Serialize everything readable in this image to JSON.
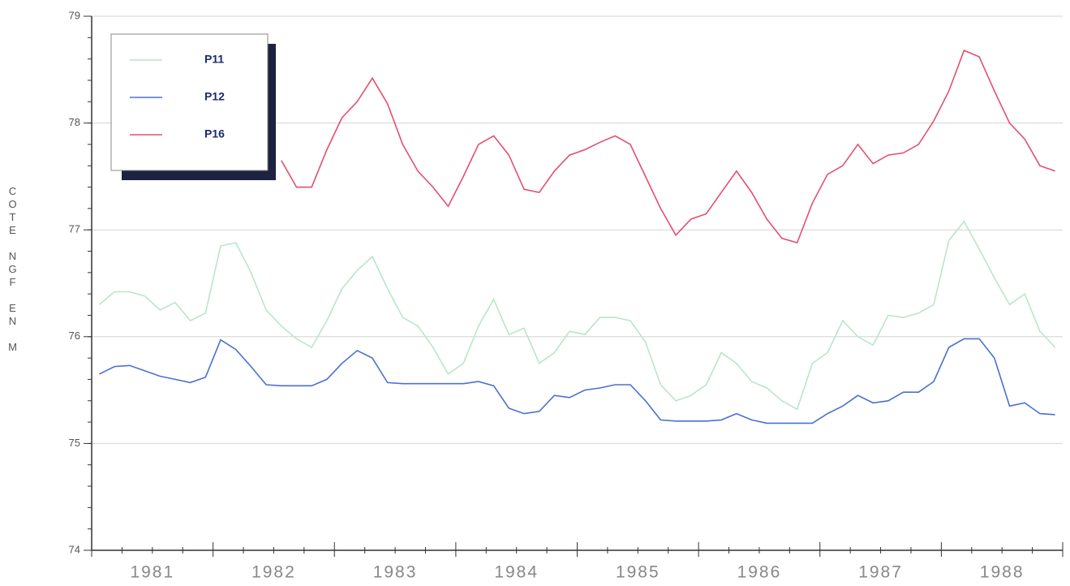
{
  "chart_data": {
    "type": "line",
    "y_label": "COTE NGF EN M",
    "categories": [
      null,
      null,
      null,
      null,
      "1981",
      null,
      null,
      null,
      null,
      null,
      null,
      null,
      "1982",
      null,
      null,
      null,
      null,
      null,
      null,
      null,
      "1983",
      null,
      null,
      null,
      null,
      null,
      null,
      null,
      "1984",
      null,
      null,
      null,
      null,
      null,
      null,
      null,
      "1985",
      null,
      null,
      null,
      null,
      null,
      null,
      null,
      "1986",
      null,
      null,
      null,
      null,
      null,
      null,
      null,
      "1987",
      null,
      null,
      null,
      null,
      null,
      null,
      null,
      "1988",
      null,
      null,
      null
    ],
    "series": [
      {
        "name": "P11",
        "color": "#b9e6c9",
        "values": [
          76.3,
          76.42,
          76.42,
          76.38,
          76.25,
          76.32,
          76.15,
          76.22,
          76.85,
          76.88,
          76.6,
          76.25,
          76.1,
          75.98,
          75.9,
          76.15,
          76.45,
          76.62,
          76.75,
          76.45,
          76.18,
          76.1,
          75.9,
          75.65,
          75.75,
          76.1,
          76.35,
          76.02,
          76.08,
          75.75,
          75.85,
          76.05,
          76.02,
          76.18,
          76.18,
          76.15,
          75.95,
          75.55,
          75.4,
          75.45,
          75.55,
          75.85,
          75.75,
          75.58,
          75.52,
          75.4,
          75.32,
          75.75,
          75.85,
          76.15,
          76.0,
          75.92,
          76.2,
          76.18,
          76.22,
          76.3,
          76.9,
          77.08,
          76.82,
          76.55,
          76.3,
          76.4,
          76.05,
          75.9
        ]
      },
      {
        "name": "P12",
        "color": "#4a70d2",
        "values": [
          75.65,
          75.72,
          75.73,
          75.68,
          75.63,
          75.6,
          75.57,
          75.62,
          75.97,
          75.88,
          75.72,
          75.55,
          75.54,
          75.54,
          75.54,
          75.6,
          75.75,
          75.87,
          75.8,
          75.57,
          75.56,
          75.56,
          75.56,
          75.56,
          75.56,
          75.58,
          75.54,
          75.33,
          75.28,
          75.3,
          75.45,
          75.43,
          75.5,
          75.52,
          75.55,
          75.55,
          75.4,
          75.22,
          75.21,
          75.21,
          75.21,
          75.22,
          75.28,
          75.22,
          75.19,
          75.19,
          75.19,
          75.19,
          75.28,
          75.35,
          75.45,
          75.38,
          75.4,
          75.48,
          75.48,
          75.58,
          75.9,
          75.98,
          75.98,
          75.8,
          75.35,
          75.38,
          75.28,
          75.27
        ]
      },
      {
        "name": "P16",
        "color": "#e2506f",
        "values": [
          null,
          null,
          null,
          null,
          null,
          null,
          null,
          null,
          null,
          null,
          null,
          null,
          77.65,
          77.4,
          77.4,
          77.75,
          78.05,
          78.2,
          78.42,
          78.18,
          77.8,
          77.55,
          77.4,
          77.22,
          77.5,
          77.8,
          77.88,
          77.7,
          77.38,
          77.35,
          77.55,
          77.7,
          77.75,
          77.82,
          77.88,
          77.8,
          77.5,
          77.2,
          76.95,
          77.1,
          77.15,
          77.35,
          77.55,
          77.35,
          77.1,
          76.92,
          76.88,
          77.25,
          77.52,
          77.6,
          77.8,
          77.62,
          77.7,
          77.72,
          77.8,
          78.02,
          78.3,
          78.68,
          78.62,
          78.3,
          78.0,
          77.85,
          77.6,
          77.55
        ]
      }
    ],
    "ylim": [
      74,
      79
    ],
    "yticks": [
      74,
      75,
      76,
      77,
      78,
      79
    ],
    "grid": true
  }
}
